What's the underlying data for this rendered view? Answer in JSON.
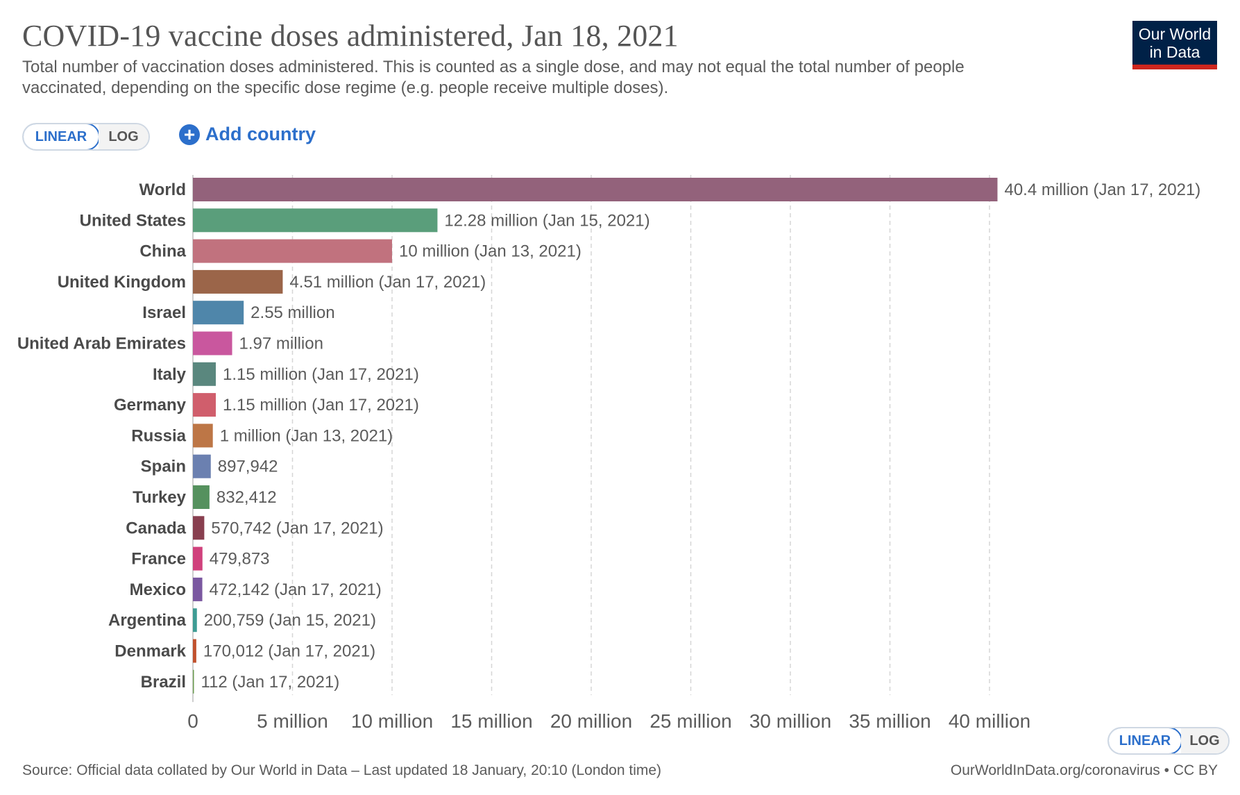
{
  "header": {
    "title": "COVID-19 vaccine doses administered, Jan 18, 2021",
    "subtitle": "Total number of vaccination doses administered. This is counted as a single dose, and may not equal the total number of people vaccinated, depending on the specific dose regime (e.g. people receive multiple doses).",
    "logo_line1": "Our World",
    "logo_line2": "in Data"
  },
  "controls": {
    "linear_label": "LINEAR",
    "log_label": "LOG",
    "add_country_label": "Add country",
    "add_icon": "plus-circle-icon"
  },
  "footer": {
    "source": "Source: Official data collated by Our World in Data – Last updated 18 January, 20:10 (London time)",
    "credit": "OurWorldInData.org/coronavirus • CC BY"
  },
  "chart_data": {
    "type": "bar",
    "orientation": "horizontal",
    "title": "COVID-19 vaccine doses administered, Jan 18, 2021",
    "xlabel": "",
    "ylabel": "",
    "xlim": [
      0,
      40400000
    ],
    "grid": true,
    "scale": "linear",
    "x_ticks": [
      {
        "value": 0,
        "label": "0"
      },
      {
        "value": 5000000,
        "label": "5 million"
      },
      {
        "value": 10000000,
        "label": "10 million"
      },
      {
        "value": 15000000,
        "label": "15 million"
      },
      {
        "value": 20000000,
        "label": "20 million"
      },
      {
        "value": 25000000,
        "label": "25 million"
      },
      {
        "value": 30000000,
        "label": "30 million"
      },
      {
        "value": 35000000,
        "label": "35 million"
      },
      {
        "value": 40000000,
        "label": "40 million"
      }
    ],
    "bars": [
      {
        "category": "World",
        "value": 40400000,
        "label": "40.4 million (Jan 17, 2021)",
        "color": "#93627b"
      },
      {
        "category": "United States",
        "value": 12280000,
        "label": "12.28 million (Jan 15, 2021)",
        "color": "#5a9e7b"
      },
      {
        "category": "China",
        "value": 10000000,
        "label": "10 million (Jan 13, 2021)",
        "color": "#c1727e"
      },
      {
        "category": "United Kingdom",
        "value": 4510000,
        "label": "4.51 million (Jan 17, 2021)",
        "color": "#9b6549"
      },
      {
        "category": "Israel",
        "value": 2550000,
        "label": "2.55 million",
        "color": "#4f86aa"
      },
      {
        "category": "United Arab Emirates",
        "value": 1970000,
        "label": "1.97 million",
        "color": "#c9579e"
      },
      {
        "category": "Italy",
        "value": 1150000,
        "label": "1.15 million (Jan 17, 2021)",
        "color": "#5a877e"
      },
      {
        "category": "Germany",
        "value": 1150000,
        "label": "1.15 million (Jan 17, 2021)",
        "color": "#d05e6c"
      },
      {
        "category": "Russia",
        "value": 1000000,
        "label": "1 million (Jan 13, 2021)",
        "color": "#bd7646"
      },
      {
        "category": "Spain",
        "value": 897942,
        "label": "897,942",
        "color": "#6b80b0"
      },
      {
        "category": "Turkey",
        "value": 832412,
        "label": "832,412",
        "color": "#55915e"
      },
      {
        "category": "Canada",
        "value": 570742,
        "label": "570,742 (Jan 17, 2021)",
        "color": "#883f4f"
      },
      {
        "category": "France",
        "value": 479873,
        "label": "479,873",
        "color": "#d0417c"
      },
      {
        "category": "Mexico",
        "value": 472142,
        "label": "472,142 (Jan 17, 2021)",
        "color": "#7a58a0"
      },
      {
        "category": "Argentina",
        "value": 200759,
        "label": "200,759 (Jan 15, 2021)",
        "color": "#3e9c94"
      },
      {
        "category": "Denmark",
        "value": 170012,
        "label": "170,012 (Jan 17, 2021)",
        "color": "#c1512d"
      },
      {
        "category": "Brazil",
        "value": 112,
        "label": "112 (Jan 17, 2021)",
        "color": "#6b9c51"
      }
    ]
  }
}
